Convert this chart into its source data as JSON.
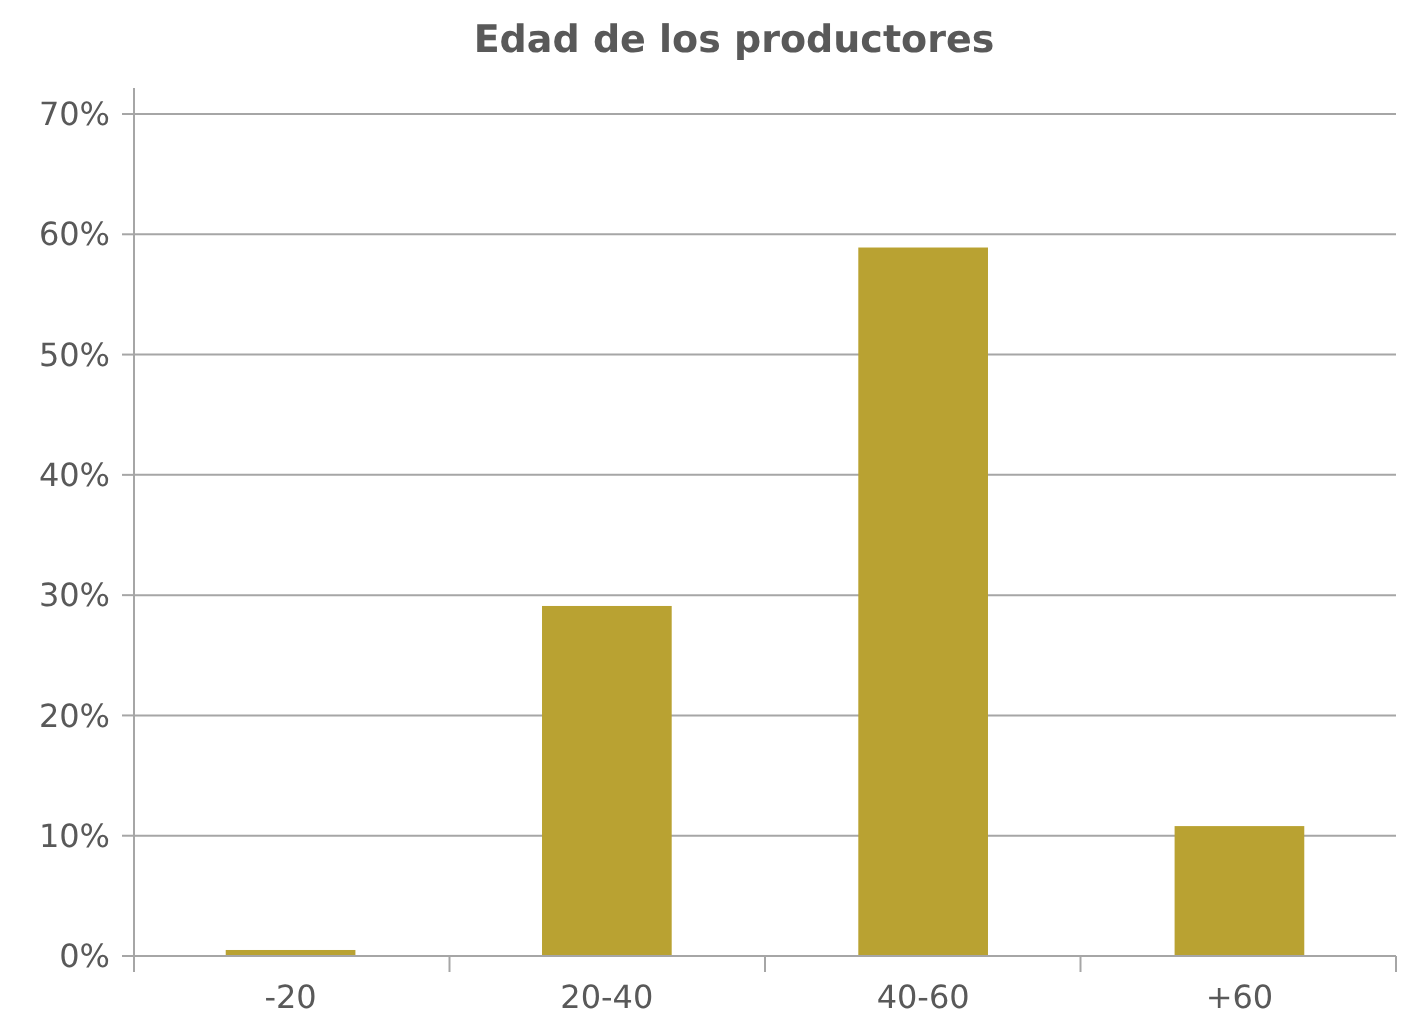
{
  "chart_data": {
    "type": "bar",
    "title": "Edad de los productores",
    "categories": [
      "-20",
      "20-40",
      "40-60",
      "+60"
    ],
    "values": [
      0.5,
      29.1,
      58.9,
      10.8
    ],
    "color": "#b9a232",
    "ylim": [
      0,
      70
    ],
    "yticks": [
      {
        "value": 0,
        "label": "0%"
      },
      {
        "value": 10,
        "label": "10%"
      },
      {
        "value": 20,
        "label": "20%"
      },
      {
        "value": 30,
        "label": "30%"
      },
      {
        "value": 40,
        "label": "40%"
      },
      {
        "value": 50,
        "label": "50%"
      },
      {
        "value": 60,
        "label": "60%"
      },
      {
        "value": 70,
        "label": "70%"
      }
    ],
    "grid": "y"
  }
}
